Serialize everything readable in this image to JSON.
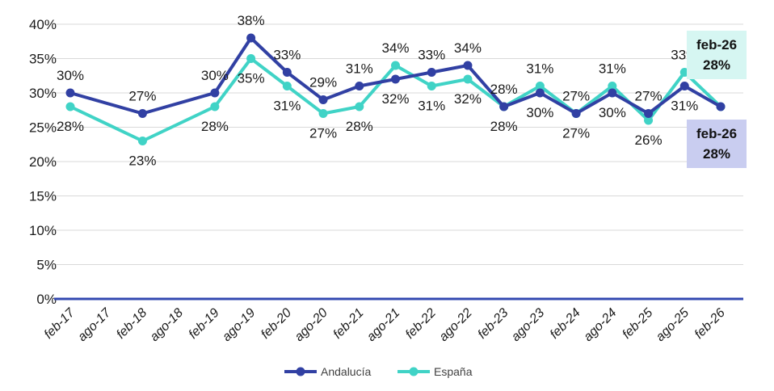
{
  "chart_data": {
    "type": "line",
    "categories": [
      "feb-17",
      "ago-17",
      "feb-18",
      "ago-18",
      "feb-19",
      "ago-19",
      "feb-20",
      "ago-20",
      "feb-21",
      "ago-21",
      "feb-22",
      "ago-22",
      "feb-23",
      "ago-23",
      "feb-24",
      "ago-24",
      "feb-25",
      "ago-25",
      "feb-26"
    ],
    "series": [
      {
        "name": "Andalucía",
        "color": "#3140a3",
        "values": [
          30,
          null,
          27,
          null,
          30,
          38,
          33,
          29,
          31,
          32,
          33,
          34,
          28,
          30,
          27,
          30,
          27,
          31,
          28
        ],
        "labels": [
          "30%",
          "",
          "27%",
          "",
          "30%",
          "38%",
          "33%",
          "29%",
          "31%",
          "32%",
          "33%",
          "34%",
          "28%",
          "30%",
          "27%",
          "30%",
          "27%",
          "31%",
          ""
        ]
      },
      {
        "name": "España",
        "color": "#40d3c6",
        "values": [
          28,
          null,
          23,
          null,
          28,
          35,
          31,
          27,
          28,
          34,
          31,
          32,
          28,
          31,
          27,
          31,
          26,
          33,
          28
        ],
        "labels": [
          "28%",
          "",
          "23%",
          "",
          "28%",
          "35%",
          "31%",
          "27%",
          "28%",
          "34%",
          "31%",
          "32%",
          "28%",
          "31%",
          "27%",
          "31%",
          "26%",
          "33%",
          ""
        ]
      }
    ],
    "y_ticks": [
      "0%",
      "5%",
      "10%",
      "15%",
      "20%",
      "25%",
      "30%",
      "35%",
      "40%"
    ],
    "ylim": [
      0,
      40
    ],
    "grid": true,
    "legend": "bottom",
    "callouts": [
      {
        "series": "España",
        "line1": "feb-26",
        "line2": "28%",
        "bg": "#d6f6f2"
      },
      {
        "series": "Andalucía",
        "line1": "feb-26",
        "line2": "28%",
        "bg": "#c9cdf0"
      }
    ]
  }
}
